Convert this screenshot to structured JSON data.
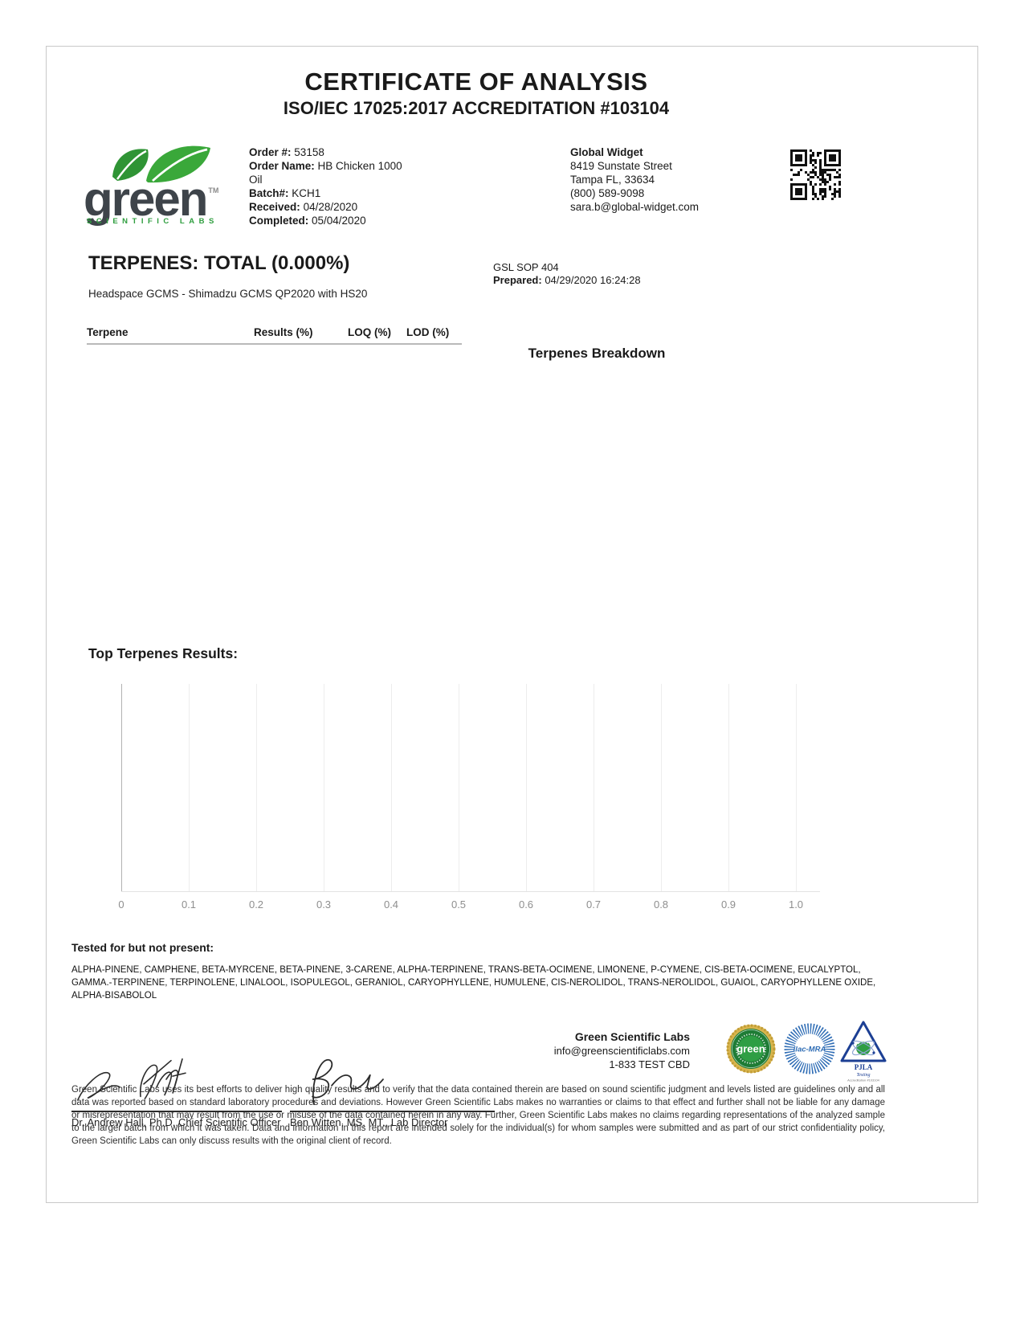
{
  "header": {
    "title": "CERTIFICATE OF ANALYSIS",
    "subtitle": "ISO/IEC 17025:2017 ACCREDITATION #103104"
  },
  "logo": {
    "word": "green",
    "tm": "TM",
    "tagline": "SCIENTIFIC LABS",
    "leaf_color": "#35a135",
    "word_color": "#3e444a"
  },
  "order_info": {
    "order_label": "Order #:",
    "order_value": "53158",
    "name_label": "Order Name:",
    "name_value": "HB Chicken 1000 Oil",
    "batch_label": "Batch#:",
    "batch_value": "KCH1",
    "received_label": "Received:",
    "received_value": "04/28/2020",
    "completed_label": "Completed:",
    "completed_value": "05/04/2020"
  },
  "client": {
    "name": "Global Widget",
    "address1": "8419 Sunstate Street",
    "address2": "Tampa FL, 33634",
    "phone": "(800) 589-9098",
    "email": "sara.b@global-widget.com"
  },
  "terpenes": {
    "title": "TERPENES: TOTAL (0.000%)",
    "method": "Headspace GCMS - Shimadzu GCMS QP2020 with HS20",
    "sop": "GSL SOP 404",
    "prepared_label": "Prepared:",
    "prepared_value": "04/29/2020 16:24:28"
  },
  "table": {
    "headers": [
      "Terpene",
      "Results (%)",
      "LOQ (%)",
      "LOD (%)"
    ],
    "rows": []
  },
  "breakdown": {
    "title": "Terpenes Breakdown"
  },
  "chart_data": {
    "type": "bar",
    "orientation": "horizontal",
    "title": "Top Terpenes Results:",
    "categories": [],
    "values": [],
    "xlim": [
      0,
      1.0
    ],
    "xtick_labels": [
      "0",
      "0.1",
      "0.2",
      "0.3",
      "0.4",
      "0.5",
      "0.6",
      "0.7",
      "0.8",
      "0.9",
      "1.0"
    ],
    "grid": true,
    "legend": false,
    "note_total_percent": "0.000"
  },
  "tested": {
    "title": "Tested for but not present:",
    "list": "ALPHA-PINENE, CAMPHENE, BETA-MYRCENE, BETA-PINENE, 3-CARENE, ALPHA-TERPINENE, TRANS-BETA-OCIMENE, LIMONENE, P-CYMENE, CIS-BETA-OCIMENE, EUCALYPTOL, GAMMA.-TERPINENE, TERPINOLENE, LINALOOL, ISOPULEGOL, GERANIOL, CARYOPHYLLENE, HUMULENE, CIS-NEROLIDOL, TRANS-NEROLIDOL, GUAIOL, CARYOPHYLLENE OXIDE, ALPHA-BISABOLOL"
  },
  "signatures": {
    "left": {
      "title": "Dr. Andrew Hall, Ph.D.,Chief Scientific Officer"
    },
    "right": {
      "title": "Ben Witten, MS, MT., Lab Director"
    }
  },
  "lab_contact": {
    "name": "Green Scientific Labs",
    "email": "info@greenscientificlabs.com",
    "phone": "1-833 TEST CBD"
  },
  "badges": {
    "seal_word": "green",
    "ilac": "ilac-MRA",
    "pjla_name": "PJLA",
    "pjla_sub": "Testing",
    "pjla_accreditation": "Accreditation #103104"
  },
  "footer": {
    "disclaimer": "Green Scientific Labs uses its best efforts to deliver high quality results and to verify that the data contained therein are based on sound scientific judgment and levels listed are guidelines only and all data was reported based on standard laboratory procedures and deviations. However Green Scientific Labs makes no warranties or claims to that effect and further shall not be liable for any damage or misrepresentation that may result from the use or misuse of the data contained herein in any way. Further, Green Scientific Labs makes no claims regarding representations of the analyzed sample to the larger batch from which it was taken. Data and information in this report are intended solely for the individual(s) for whom samples were submitted and as part of our strict confidentiality policy, Green Scientific Labs can only discuss results with the original client of record."
  }
}
